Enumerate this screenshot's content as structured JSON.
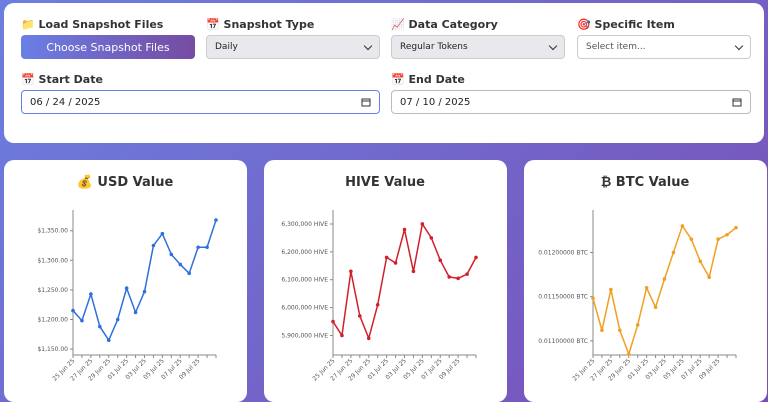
{
  "controls": {
    "load_label": "📁 Load Snapshot Files",
    "load_button": "Choose Snapshot Files",
    "type_label": "📅 Snapshot Type",
    "type_value": "Daily",
    "category_label": "📈 Data Category",
    "category_value": "Regular Tokens",
    "item_label": "🎯 Specific Item",
    "item_value": "Select item...",
    "start_label": "📅 Start Date",
    "start_value": "06 / 24 / 2025",
    "end_label": "📅 End Date",
    "end_value": "07 / 10 / 2025"
  },
  "charts": [
    {
      "type": "line",
      "title": "💰 USD Value",
      "color": "#2f6fdc",
      "categories": [
        "25 Jun 25",
        null,
        "27 Jun 25",
        null,
        "29 Jun 25",
        null,
        "01 Jul 25",
        null,
        "03 Jul 25",
        null,
        "05 Jul 25",
        null,
        "07 Jul 25",
        null,
        "09 Jul 25",
        null,
        null
      ],
      "values": [
        1215,
        1198,
        1243,
        1188,
        1165,
        1200,
        1253,
        1212,
        1247,
        1325,
        1345,
        1310,
        1293,
        1278,
        1322,
        1322,
        1368
      ],
      "ylim": [
        1140,
        1385
      ],
      "yticks": [
        {
          "value": 1150,
          "label": "$1,150.00"
        },
        {
          "value": 1200,
          "label": "$1,200.00"
        },
        {
          "value": 1250,
          "label": "$1,250.00"
        },
        {
          "value": 1300,
          "label": "$1,300.00"
        },
        {
          "value": 1350,
          "label": "$1,350.00"
        }
      ]
    },
    {
      "type": "line",
      "title": "HIVE Value",
      "color": "#d0202a",
      "categories": [
        "25 Jun 25",
        null,
        "27 Jun 25",
        null,
        "29 Jun 25",
        null,
        "01 Jul 25",
        null,
        "03 Jul 25",
        null,
        "05 Jul 25",
        null,
        "07 Jul 25",
        null,
        "09 Jul 25",
        null,
        null
      ],
      "values": [
        5950000,
        5900000,
        6130000,
        5970000,
        5890000,
        6010000,
        6180000,
        6160000,
        6280000,
        6130000,
        6300000,
        6250000,
        6170000,
        6110000,
        6105000,
        6120000,
        6180000
      ],
      "ylim": [
        5830000,
        6350000
      ],
      "yticks": [
        {
          "value": 5900000,
          "label": "5,900,000 HIVE"
        },
        {
          "value": 6000000,
          "label": "6,000,000 HIVE"
        },
        {
          "value": 6100000,
          "label": "6,100,000 HIVE"
        },
        {
          "value": 6200000,
          "label": "6,200,000 HIVE"
        },
        {
          "value": 6300000,
          "label": "6,300,000 HIVE"
        }
      ]
    },
    {
      "type": "line",
      "title": "₿ BTC Value",
      "color": "#f0a020",
      "categories": [
        "25 Jun 25",
        null,
        "27 Jun 25",
        null,
        "29 Jun 25",
        null,
        "01 Jul 25",
        null,
        "03 Jul 25",
        null,
        "05 Jul 25",
        null,
        "07 Jul 25",
        null,
        "09 Jul 25",
        null,
        null
      ],
      "values": [
        0.01148,
        0.01112,
        0.01158,
        0.01112,
        0.01085,
        0.01118,
        0.0116,
        0.01138,
        0.0117,
        0.012,
        0.0123,
        0.01215,
        0.0119,
        0.01172,
        0.01215,
        0.0122,
        0.01228
      ],
      "ylim": [
        0.01084,
        0.01248
      ],
      "yticks": [
        {
          "value": 0.011,
          "label": "0.01100000 BTC"
        },
        {
          "value": 0.0115,
          "label": "0.01150000 BTC"
        },
        {
          "value": 0.012,
          "label": "0.01200000 BTC"
        }
      ]
    }
  ]
}
